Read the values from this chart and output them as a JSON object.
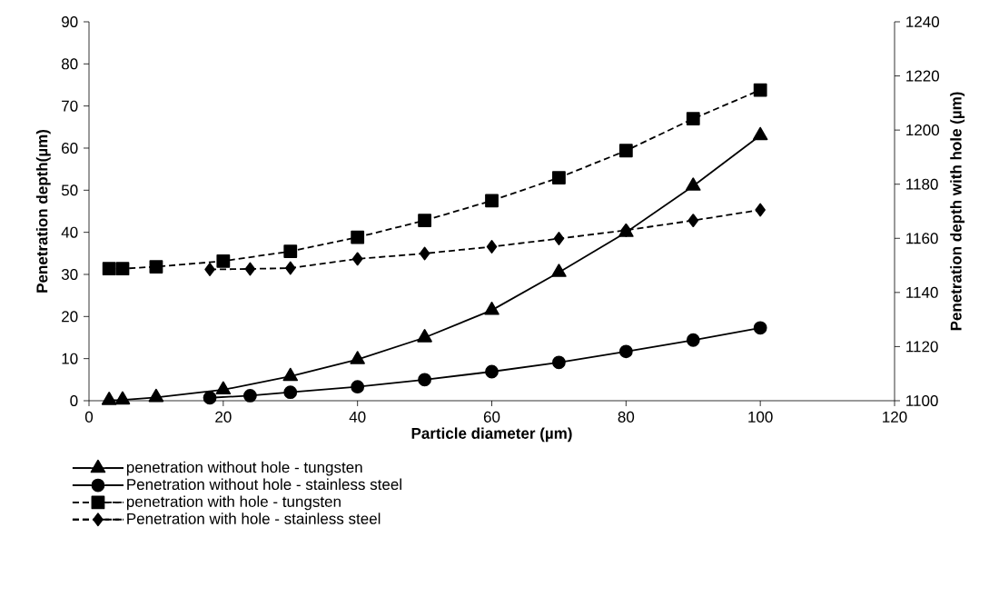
{
  "chart_data": {
    "type": "line",
    "xlabel": "Particle diameter (µm)",
    "ylabel": "Penetration depth(µm)",
    "y2label": "Penetration depth with hole (µm)",
    "xlim": [
      0,
      120
    ],
    "xticks": [
      0,
      20,
      40,
      60,
      80,
      100,
      120
    ],
    "ylim": [
      0,
      90
    ],
    "yticks": [
      0,
      10,
      20,
      30,
      40,
      50,
      60,
      70,
      80,
      90
    ],
    "y2lim": [
      1100,
      1240
    ],
    "y2ticks": [
      1100,
      1120,
      1140,
      1160,
      1180,
      1200,
      1220,
      1240
    ],
    "grid": false,
    "legend": "bottom",
    "series": [
      {
        "name": "penetration without hole - tungsten",
        "color": "#000000",
        "marker": "triangle",
        "line_style": "solid",
        "x": [
          3,
          5,
          10,
          20,
          30,
          40,
          50,
          60,
          70,
          80,
          90,
          100
        ],
        "values": [
          0.1,
          0.2,
          0.8,
          2.6,
          5.8,
          9.8,
          15,
          21.5,
          30.5,
          40,
          51,
          63
        ]
      },
      {
        "name": "Penetration without hole - stainless steel",
        "color": "#000000",
        "marker": "circle",
        "line_style": "solid",
        "x": [
          18,
          24,
          30,
          40,
          50,
          60,
          70,
          80,
          90,
          100
        ],
        "values": [
          0.7,
          1.2,
          2.0,
          3.3,
          5.0,
          6.9,
          9.1,
          11.7,
          14.4,
          17.3
        ]
      },
      {
        "name": "penetration with hole - tungsten",
        "color": "#000000",
        "marker": "square",
        "line_style": "dashed",
        "axis": "y2",
        "x": [
          3,
          5,
          10,
          20,
          30,
          40,
          50,
          60,
          70,
          80,
          90,
          100
        ],
        "values": [
          1148.8,
          1148.8,
          1149.5,
          1151.6,
          1155.2,
          1160.4,
          1166.6,
          1173.9,
          1182.4,
          1192.4,
          1204.2,
          1214.8
        ]
      },
      {
        "name": "Penetration with hole - stainless steel",
        "color": "#000000",
        "marker": "diamond",
        "line_style": "dashed",
        "axis": "y2",
        "x": [
          18,
          24,
          30,
          40,
          50,
          60,
          70,
          80,
          90,
          100
        ],
        "values": [
          1148.5,
          1148.7,
          1149,
          1152.4,
          1154.4,
          1156.9,
          1159.9,
          1163,
          1166.6,
          1170.5
        ]
      }
    ]
  }
}
